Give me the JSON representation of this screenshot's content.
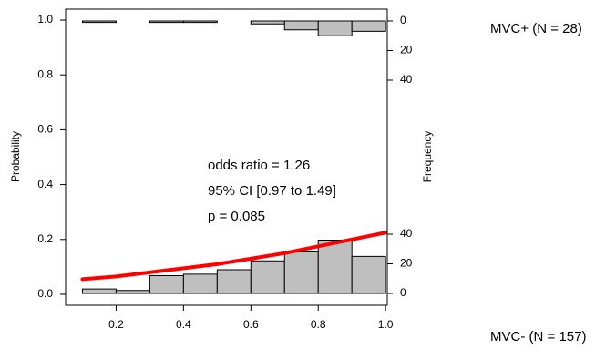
{
  "chart_data": {
    "type": "logistic-histogram",
    "ylabel": "Probability",
    "y2label": "Frequency",
    "annotations": [
      "odds ratio = 1.26",
      "95% CI [0.97 to 1.49]",
      "p = 0.085"
    ],
    "top_group_label": "MVC+ (N = 28)",
    "bottom_group_label": "MVC- (N = 157)",
    "xlim": [
      0.05,
      1.005
    ],
    "xticks": [
      0.2,
      0.4,
      0.6,
      0.8,
      {
        "value": 1.0,
        "label": "1.0"
      }
    ],
    "ylim": [
      -0.04,
      1.04
    ],
    "yticks": [
      {
        "value": 0,
        "label": "0.0"
      },
      0.2,
      0.4,
      0.6,
      0.8,
      {
        "value": 1.0,
        "label": "1.0"
      }
    ],
    "y2lim": [
      -8,
      192
    ],
    "bins": [
      0.1,
      0.2,
      0.3,
      0.4,
      0.5,
      0.6,
      0.7,
      0.8,
      0.9,
      1.0
    ],
    "bar_color": "#bfbfbf",
    "top_hist": {
      "counts": [
        1,
        0,
        1,
        1,
        0,
        2,
        6,
        10,
        7
      ],
      "yticks": [
        0,
        20,
        40
      ],
      "inverted": true
    },
    "bottom_hist": {
      "counts": [
        3,
        2,
        12,
        13,
        16,
        22,
        28,
        36,
        25
      ],
      "yticks": [
        0,
        20,
        40
      ],
      "inverted": false
    },
    "curve": {
      "color": "#ff0000",
      "x": [
        0.1,
        0.2,
        0.3,
        0.4,
        0.5,
        0.6,
        0.7,
        0.8,
        0.9,
        1.0
      ],
      "y": [
        0.055,
        0.065,
        0.08,
        0.095,
        0.11,
        0.13,
        0.15,
        0.175,
        0.2,
        0.225
      ]
    }
  }
}
